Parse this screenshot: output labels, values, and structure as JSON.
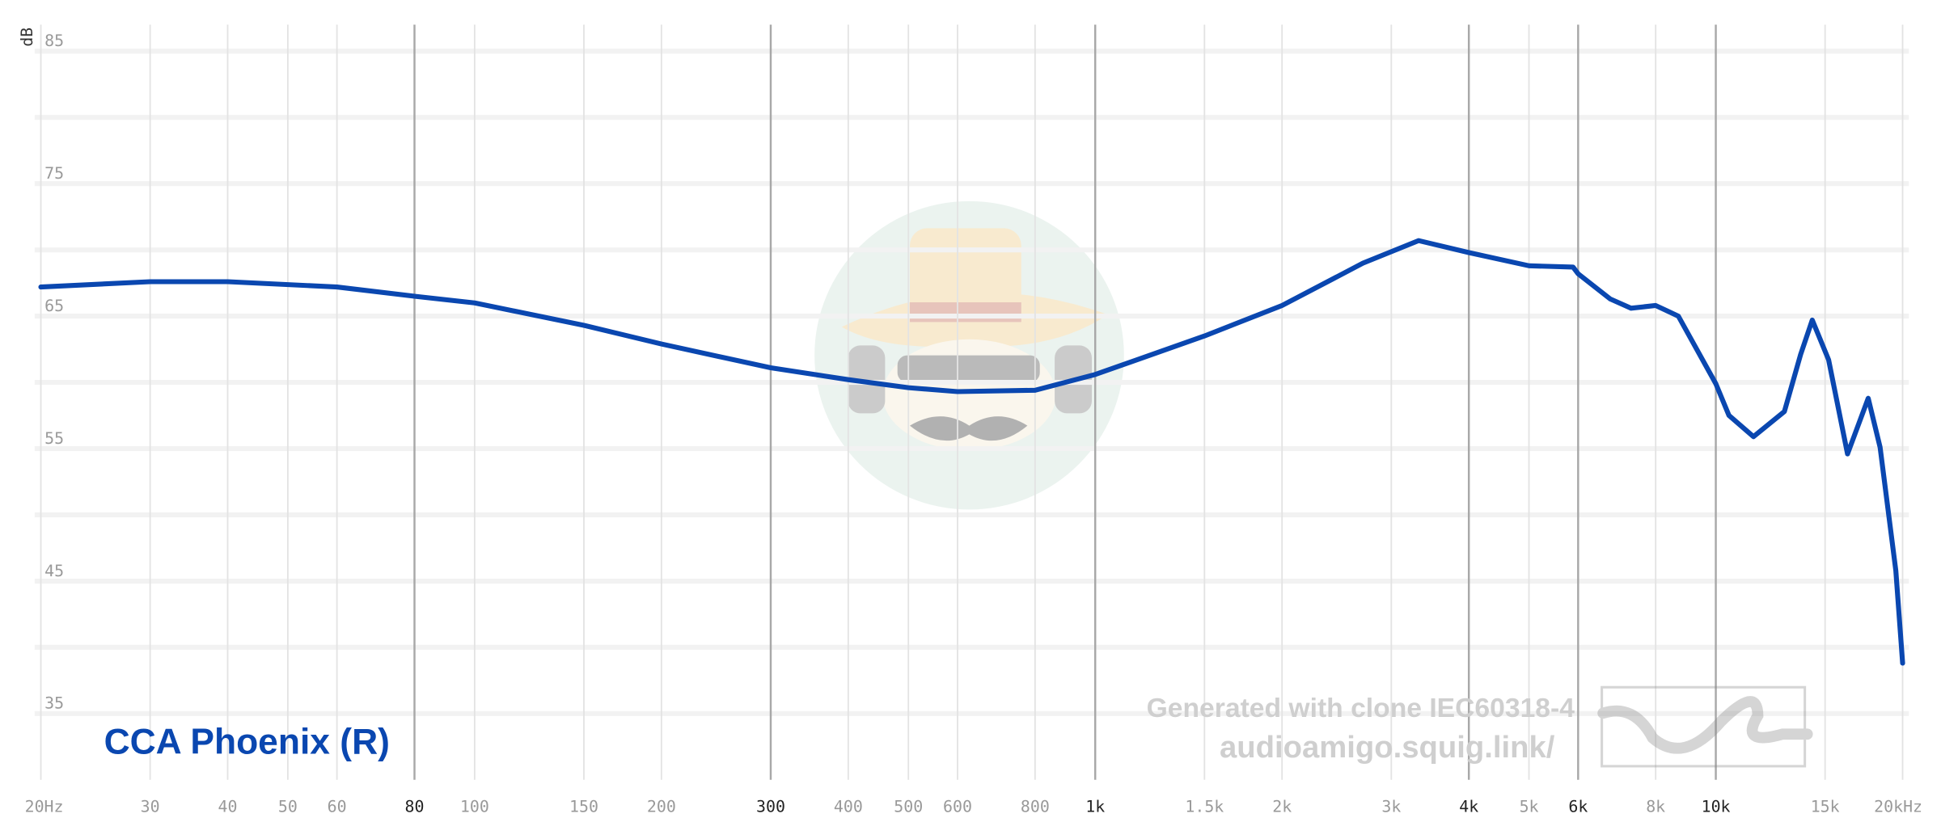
{
  "chart_data": {
    "type": "line",
    "y_label": "dB",
    "x_scale": "log",
    "x": [
      20,
      30,
      40,
      60,
      80,
      100,
      150,
      200,
      300,
      400,
      500,
      600,
      800,
      1000,
      1500,
      2000,
      2700,
      3320,
      4000,
      5000,
      5890,
      6000,
      6760,
      7300,
      8000,
      8700,
      10000,
      10500,
      11500,
      12900,
      13700,
      14300,
      15200,
      16300,
      17600,
      18400,
      19500,
      20000
    ],
    "series": [
      {
        "name": "CCA Phoenix (R)",
        "color": "#0a47b0",
        "values": [
          67.2,
          67.6,
          67.6,
          67.2,
          66.5,
          66.0,
          64.3,
          62.9,
          61.1,
          60.2,
          59.6,
          59.3,
          59.4,
          60.6,
          63.5,
          65.8,
          69.0,
          70.7,
          69.8,
          68.8,
          68.7,
          68.2,
          66.3,
          65.6,
          65.8,
          65.0,
          59.9,
          57.5,
          55.9,
          57.8,
          62.1,
          64.7,
          61.7,
          54.6,
          58.8,
          55.1,
          45.8,
          38.8
        ]
      }
    ],
    "xlim": [
      20,
      20000
    ],
    "ylim": [
      30,
      87
    ],
    "yticks": [
      35,
      45,
      55,
      65,
      75,
      85
    ],
    "yminor": [
      40,
      50,
      60,
      70,
      80
    ],
    "xticks": [
      {
        "value": 20,
        "label": "20Hz"
      },
      30,
      40,
      50,
      60,
      80,
      100,
      150,
      200,
      300,
      400,
      500,
      600,
      800,
      {
        "value": 1000,
        "label": "1k"
      },
      {
        "value": 1500,
        "label": "1.5k"
      },
      {
        "value": 2000,
        "label": "2k"
      },
      {
        "value": 3000,
        "label": "3k"
      },
      {
        "value": 4000,
        "label": "4k"
      },
      {
        "value": 5000,
        "label": "5k"
      },
      {
        "value": 6000,
        "label": "6k"
      },
      {
        "value": 8000,
        "label": "8k"
      },
      {
        "value": 10000,
        "label": "10k"
      },
      {
        "value": 15000,
        "label": "15k"
      },
      {
        "value": 20000,
        "label": "20kHz"
      }
    ],
    "emphasized_xticks": [
      80,
      300,
      1000,
      4000,
      6000,
      10000
    ],
    "grid": true,
    "watermark": [
      "Generated with clone IEC60318-4",
      "audioamigo.squig.link/"
    ]
  }
}
